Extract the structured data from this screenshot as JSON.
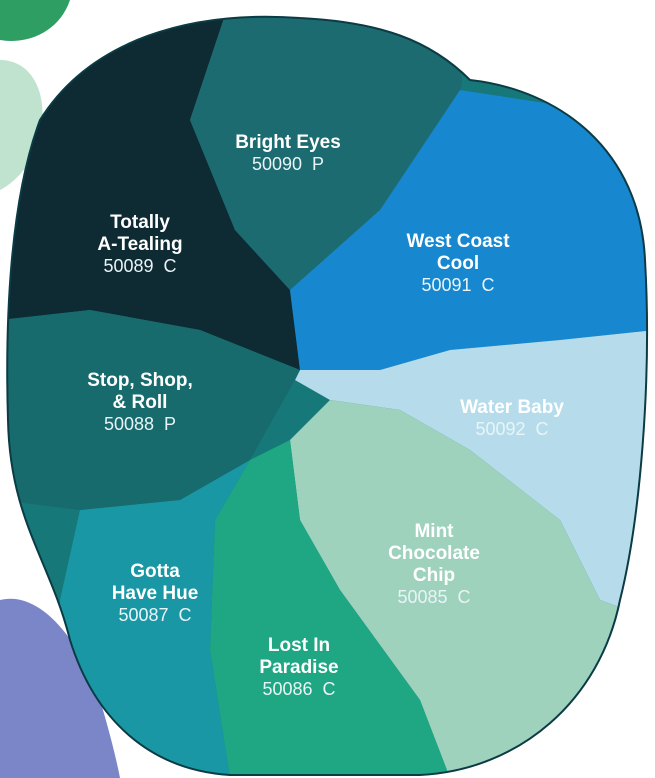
{
  "swatches": [
    {
      "name_lines": [
        "Bright Eyes"
      ],
      "code": "50090  P"
    },
    {
      "name_lines": [
        "Totally",
        "A-Tealing"
      ],
      "code": "50089  C"
    },
    {
      "name_lines": [
        "West Coast",
        "Cool"
      ],
      "code": "50091  C"
    },
    {
      "name_lines": [
        "Stop, Shop,",
        "& Roll"
      ],
      "code": "50088  P"
    },
    {
      "name_lines": [
        "Water Baby"
      ],
      "code": "50092  C"
    },
    {
      "name_lines": [
        "Mint",
        "Chocolate",
        "Chip"
      ],
      "code": "50085  C"
    },
    {
      "name_lines": [
        "Gotta",
        "Have Hue"
      ],
      "code": "50087  C"
    },
    {
      "name_lines": [
        "Lost In",
        "Paradise"
      ],
      "code": "50086  C"
    }
  ]
}
